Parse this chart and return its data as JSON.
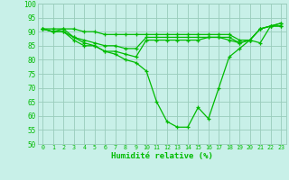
{
  "xlabel": "Humidité relative (%)",
  "xlim": [
    -0.5,
    23.5
  ],
  "ylim": [
    50,
    100
  ],
  "yticks": [
    50,
    55,
    60,
    65,
    70,
    75,
    80,
    85,
    90,
    95,
    100
  ],
  "xticks": [
    0,
    1,
    2,
    3,
    4,
    5,
    6,
    7,
    8,
    9,
    10,
    11,
    12,
    13,
    14,
    15,
    16,
    17,
    18,
    19,
    20,
    21,
    22,
    23
  ],
  "background_color": "#c8f0e8",
  "grid_color": "#99ccbb",
  "line_color": "#00bb00",
  "curves": [
    [
      91,
      90,
      90,
      87,
      85,
      85,
      83,
      82,
      80,
      79,
      76,
      65,
      58,
      56,
      56,
      63,
      59,
      70,
      81,
      84,
      87,
      86,
      92,
      93
    ],
    [
      91,
      90,
      91,
      91,
      90,
      90,
      89,
      89,
      89,
      89,
      89,
      89,
      89,
      89,
      89,
      89,
      89,
      89,
      89,
      87,
      87,
      91,
      92,
      93
    ],
    [
      91,
      91,
      91,
      88,
      87,
      86,
      85,
      85,
      84,
      84,
      88,
      88,
      88,
      88,
      88,
      88,
      88,
      88,
      88,
      86,
      87,
      91,
      92,
      92
    ],
    [
      91,
      90,
      90,
      88,
      86,
      85,
      83,
      83,
      82,
      81,
      87,
      87,
      87,
      87,
      87,
      87,
      88,
      88,
      87,
      86,
      87,
      91,
      92,
      92
    ]
  ]
}
